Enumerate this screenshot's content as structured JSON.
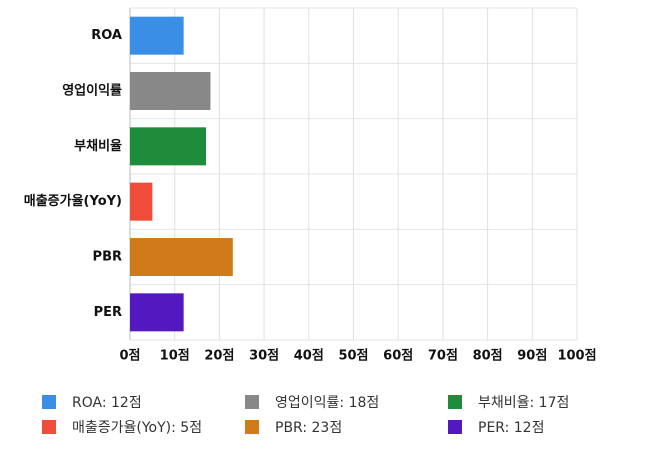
{
  "chart_data": {
    "type": "hbar",
    "categories": [
      "ROA",
      "영업이익률",
      "부채비율",
      "매출증가율(YoY)",
      "PBR",
      "PER"
    ],
    "values": [
      12,
      18,
      17,
      5,
      23,
      12
    ],
    "colors": [
      "#3a8ee6",
      "#888888",
      "#1e8c3a",
      "#f04c3c",
      "#d07a1a",
      "#5418c0"
    ],
    "xlim": [
      0,
      100
    ],
    "xticks": [
      {
        "value": 0,
        "label": "0점"
      },
      {
        "value": 10,
        "label": "10점"
      },
      {
        "value": 20,
        "label": "20점"
      },
      {
        "value": 30,
        "label": "30점"
      },
      {
        "value": 40,
        "label": "40점"
      },
      {
        "value": 50,
        "label": "50점"
      },
      {
        "value": 60,
        "label": "60점"
      },
      {
        "value": 70,
        "label": "70점"
      },
      {
        "value": 80,
        "label": "80점"
      },
      {
        "value": 90,
        "label": "90점"
      },
      {
        "value": 100,
        "label": "100점"
      }
    ],
    "grid": true,
    "legend": [
      "ROA: 12점",
      "영업이익률: 18점",
      "부채비율: 17점",
      "매출증가율(YoY): 5점",
      "PBR: 23점",
      "PER: 12점"
    ]
  }
}
